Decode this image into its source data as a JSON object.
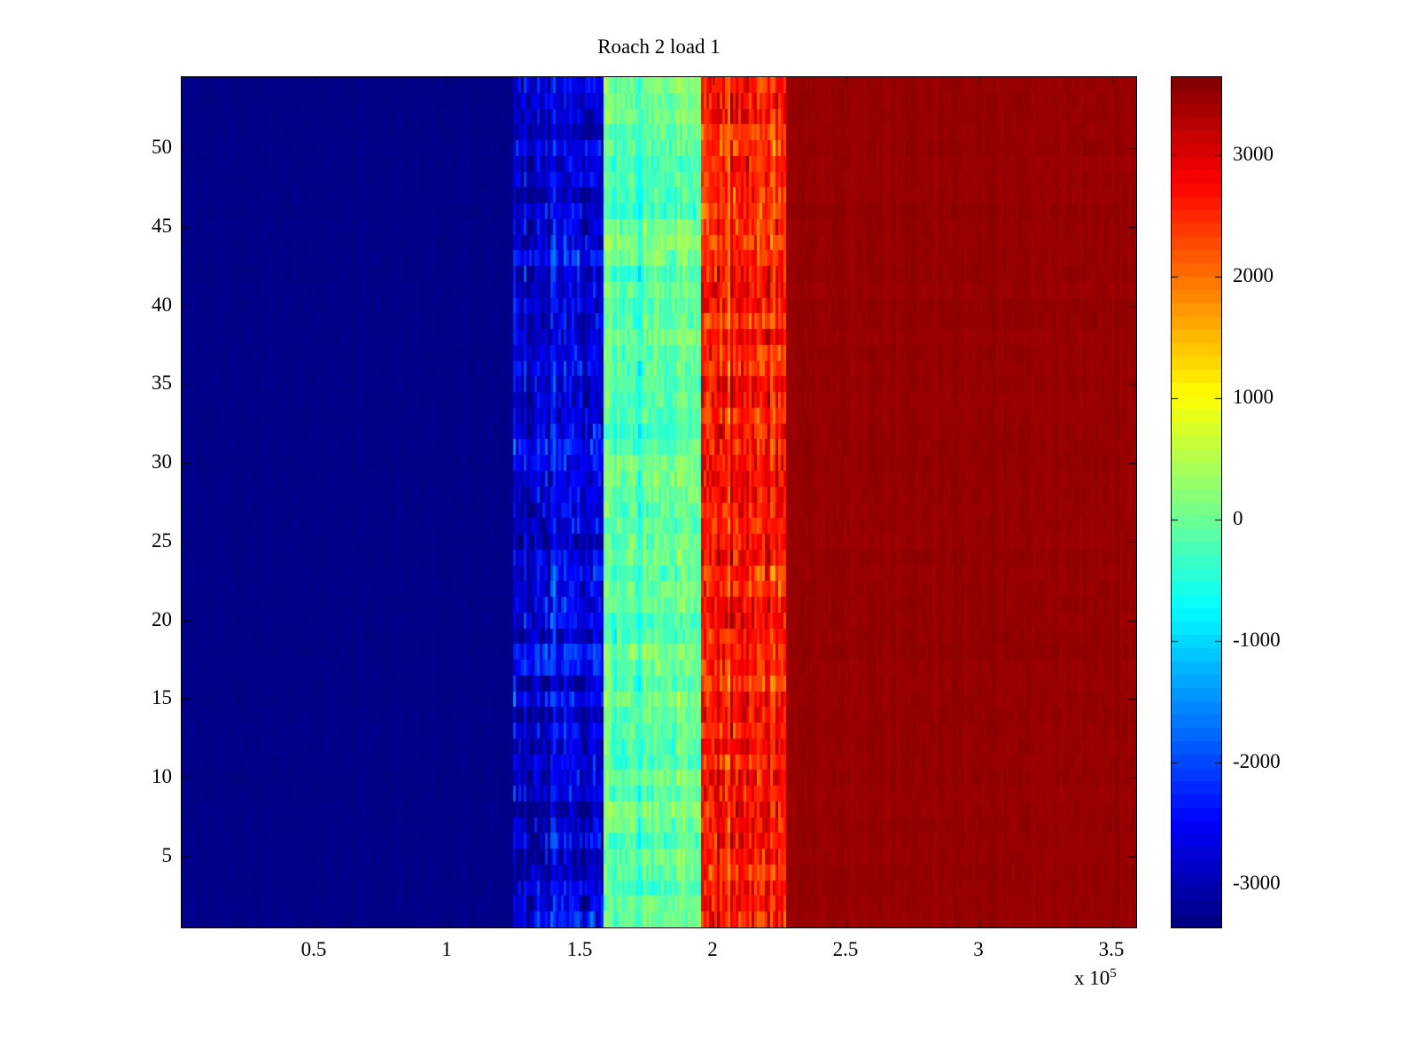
{
  "chart_data": {
    "type": "heatmap",
    "title": "Roach 2 load 1",
    "xlabel": "",
    "ylabel": "",
    "x_exponent_label": "x 10",
    "x_exponent": "5",
    "x_range": [
      0,
      359000
    ],
    "y_range": [
      0.5,
      54.5
    ],
    "x_ticks": [
      50000,
      100000,
      150000,
      200000,
      250000,
      300000,
      350000
    ],
    "x_tick_labels": [
      "0.5",
      "1",
      "1.5",
      "2",
      "2.5",
      "3",
      "3.5"
    ],
    "y_ticks": [
      5,
      10,
      15,
      20,
      25,
      30,
      35,
      40,
      45,
      50
    ],
    "rows": 54,
    "cols": 360,
    "colormap": "jet",
    "clim": [
      -3360,
      3640
    ],
    "colorbar_ticks": [
      3000,
      2000,
      1000,
      0,
      -1000,
      -2000,
      -3000
    ],
    "grid": false,
    "legend": null,
    "bands": [
      {
        "x_start": 0,
        "x_end": 124300,
        "mean": -3310,
        "noise": 30,
        "row_noise": 10
      },
      {
        "x_start": 124300,
        "x_end": 158300,
        "mean": -2650,
        "noise": 420,
        "row_noise": 180
      },
      {
        "x_start": 158300,
        "x_end": 195000,
        "mean": -120,
        "noise": 260,
        "row_noise": 120
      },
      {
        "x_start": 195000,
        "x_end": 227700,
        "mean": 2480,
        "noise": 380,
        "row_noise": 160
      },
      {
        "x_start": 227700,
        "x_end": 359000,
        "mean": 3480,
        "noise": 40,
        "row_noise": 10
      }
    ]
  }
}
